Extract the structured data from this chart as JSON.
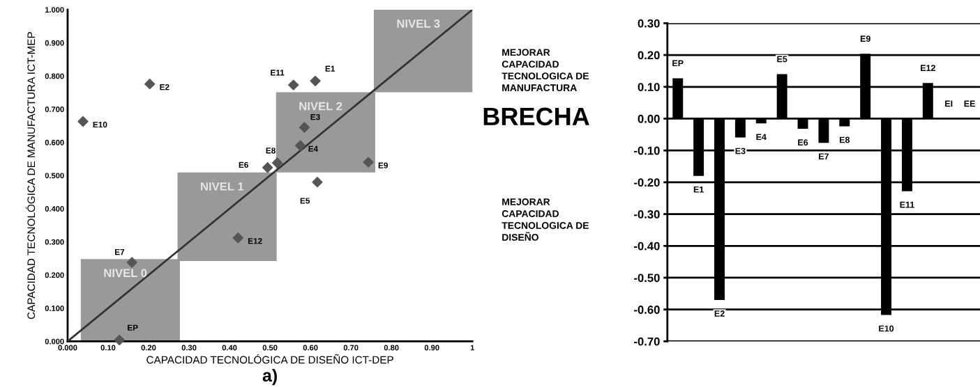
{
  "chart_data": [
    {
      "type": "scatter",
      "xlabel": "CAPACIDAD TECNOLÓGICA DE DISEÑO ICT-DEP",
      "ylabel": "CAPACIDAD TECNOLÓGICA DE MANUFACTURA ICT-MEP",
      "series": [
        {
          "type": "scatter",
          "color": "#555555",
          "marker": "diamond",
          "x": [
            0.038,
            0.203,
            0.558,
            0.612,
            0.585,
            0.575,
            0.518,
            0.494,
            0.743,
            0.617,
            0.421,
            0.159,
            0.128
          ],
          "values": [
            0.663,
            0.776,
            0.773,
            0.785,
            0.645,
            0.59,
            0.538,
            0.524,
            0.54,
            0.48,
            0.312,
            0.238,
            0.004
          ]
        },
        {
          "type": "line",
          "color": "#333333",
          "marker": "none",
          "x": [
            0,
            1
          ],
          "values": [
            0,
            1
          ]
        },
        {
          "type": "bar",
          "color": "#999999",
          "x": [
            0.155,
            0.394,
            0.6375,
            0.879
          ],
          "base": [
            0,
            0.242,
            0.509,
            0.751
          ],
          "values": [
            0.248,
            0.267,
            0.242,
            0.249
          ]
        }
      ],
      "annotations": [
        "NIVEL 0",
        "NIVEL 1",
        "NIVEL 2",
        "NIVEL 3",
        {
          "text": "E10",
          "x": 0.038,
          "y": 0.663
        },
        {
          "text": "E2",
          "x": 0.203,
          "y": 0.776
        },
        {
          "text": "E11",
          "x": 0.558,
          "y": 0.773
        },
        {
          "text": "E1",
          "x": 0.612,
          "y": 0.785
        },
        {
          "text": "E3",
          "x": 0.585,
          "y": 0.645
        },
        {
          "text": "E4",
          "x": 0.575,
          "y": 0.59
        },
        {
          "text": "E8",
          "x": 0.518,
          "y": 0.538
        },
        {
          "text": "E6",
          "x": 0.494,
          "y": 0.524
        },
        {
          "text": "E9",
          "x": 0.743,
          "y": 0.54
        },
        {
          "text": "E5",
          "x": 0.617,
          "y": 0.48
        },
        {
          "text": "E12",
          "x": 0.421,
          "y": 0.312
        },
        {
          "text": "E7",
          "x": 0.159,
          "y": 0.238
        },
        {
          "text": "EP",
          "x": 0.128,
          "y": 0.004
        },
        "a)"
      ],
      "xlim": [
        0,
        1
      ],
      "ylim": [
        0,
        1
      ],
      "xticks": [
        {
          "value": 0,
          "label": "0.000"
        },
        {
          "value": 0.1,
          "label": "0.10"
        },
        {
          "value": 0.2,
          "label": "0.20"
        },
        {
          "value": 0.3,
          "label": "0.30"
        },
        {
          "value": 0.4,
          "label": "0.40"
        },
        {
          "value": 0.5,
          "label": "0.50"
        },
        {
          "value": 0.6,
          "label": "0.60"
        },
        {
          "value": 0.7,
          "label": "0.70"
        },
        {
          "value": 0.8,
          "label": "0.80"
        },
        {
          "value": 0.9,
          "label": "0.90"
        },
        1
      ],
      "yticks": [
        {
          "value": 0,
          "label": "0.000"
        },
        {
          "value": 0.1,
          "label": "0.100"
        },
        {
          "value": 0.2,
          "label": "0.200"
        },
        {
          "value": 0.3,
          "label": "0.300"
        },
        {
          "value": 0.4,
          "label": "0.400"
        },
        {
          "value": 0.5,
          "label": "0.500"
        },
        {
          "value": 0.6,
          "label": "0.600"
        },
        {
          "value": 0.7,
          "label": "0.700"
        },
        {
          "value": 0.8,
          "label": "0.800"
        },
        {
          "value": 0.9,
          "label": "0.900"
        },
        {
          "value": 1,
          "label": "1.000"
        }
      ]
    },
    {
      "type": "bar",
      "ylabel": "BRECHA",
      "categories": [
        "EP",
        "E1",
        "E2",
        "E3",
        "E4",
        "E5",
        "E6",
        "E7",
        "E8",
        "E9",
        "E10",
        "E11",
        "E12",
        "EI",
        "EE"
      ],
      "values": [
        0.127,
        -0.18,
        -0.57,
        -0.059,
        -0.015,
        0.14,
        -0.032,
        -0.076,
        -0.024,
        0.204,
        -0.617,
        -0.228,
        0.112,
        null,
        null
      ],
      "color": "#000000",
      "annotations": [
        "MEJORAR\nCAPACIDAD\nTECNOLOGICA DE\nMANUFACTURA",
        "MEJORAR\nCAPACIDAD\nTECNOLOGICA DE\nDISEÑO"
      ],
      "ylim": [
        -0.7,
        0.3
      ],
      "yticks": [
        {
          "value": -0.7,
          "label": "-0.70"
        },
        {
          "value": -0.6,
          "label": "-0.60"
        },
        {
          "value": -0.5,
          "label": "-0.50"
        },
        {
          "value": -0.4,
          "label": "-0.40"
        },
        {
          "value": -0.3,
          "label": "-0.30"
        },
        {
          "value": -0.2,
          "label": "-0.20"
        },
        {
          "value": -0.1,
          "label": "-0.10"
        },
        {
          "value": 0,
          "label": "0.00"
        },
        {
          "value": 0.1,
          "label": "0.10"
        },
        {
          "value": 0.2,
          "label": "0.20"
        },
        {
          "value": 0.3,
          "label": "0.30"
        }
      ],
      "grid": "y"
    }
  ]
}
